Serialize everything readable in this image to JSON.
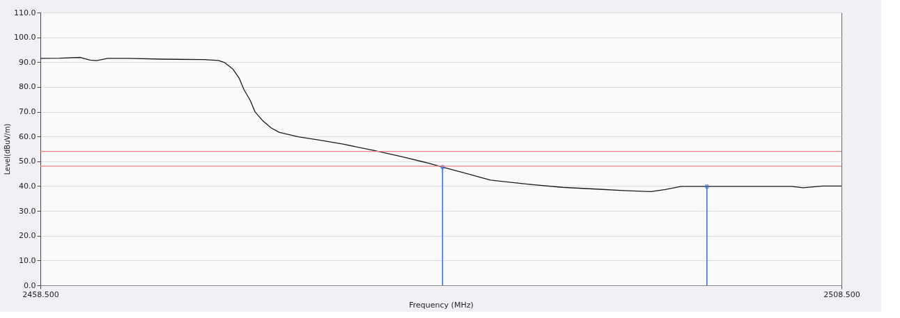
{
  "chart_data": {
    "type": "line",
    "xlabel": "Frequency (MHz)",
    "ylabel": "Level(dBuV/m)",
    "xlim": [
      2458.5,
      2508.5
    ],
    "xticks": [
      {
        "value": 2458.5,
        "label": "2458.500"
      },
      {
        "value": 2508.5,
        "label": "2508.500"
      }
    ],
    "ylim": [
      0,
      110
    ],
    "yticks": [
      {
        "value": 0,
        "label": "0.0"
      },
      {
        "value": 10,
        "label": "10.0"
      },
      {
        "value": 20,
        "label": "20.0"
      },
      {
        "value": 30,
        "label": "30.0"
      },
      {
        "value": 40,
        "label": "40.0"
      },
      {
        "value": 50,
        "label": "50.0"
      },
      {
        "value": 60,
        "label": "60.0"
      },
      {
        "value": 70,
        "label": "70.0"
      },
      {
        "value": 80,
        "label": "80.0"
      },
      {
        "value": 90,
        "label": "90.0"
      },
      {
        "value": 100,
        "label": "100.0"
      },
      {
        "value": 110,
        "label": "110.0"
      }
    ],
    "grid": "y",
    "line_style": "solid",
    "series": [
      {
        "color": "#1a1a1a",
        "marker": "none",
        "x": [
          2458.5,
          2459.7,
          2461.0,
          2461.6,
          2462.0,
          2462.7,
          2464.0,
          2466.1,
          2468.7,
          2469.6,
          2470.0,
          2470.5,
          2470.9,
          2471.2,
          2471.6,
          2471.9,
          2472.4,
          2472.9,
          2473.4,
          2474.6,
          2476.0,
          2477.4,
          2479.3,
          2481.1,
          2482.5,
          2483.6,
          2485.3,
          2486.6,
          2488.9,
          2491.1,
          2493.2,
          2494.9,
          2496.6,
          2497.5,
          2498.5,
          2500.1,
          2505.4,
          2506.1,
          2507.3,
          2508.5
        ],
        "values": [
          91.5,
          91.6,
          91.9,
          90.8,
          90.6,
          91.5,
          91.5,
          91.2,
          91.0,
          90.7,
          89.8,
          87.3,
          83.6,
          79.0,
          74.5,
          69.9,
          66.2,
          63.5,
          61.7,
          59.9,
          58.5,
          56.9,
          54.4,
          51.8,
          49.6,
          47.7,
          44.7,
          42.4,
          40.8,
          39.5,
          38.8,
          38.2,
          37.8,
          38.6,
          39.9,
          39.9,
          39.9,
          39.3,
          40.0,
          40.0
        ]
      },
      {
        "type": "lollipop",
        "color": "#3a6fe0",
        "marker": "circle",
        "x": [
          2483.6,
          2500.1
        ],
        "values": [
          47.7,
          39.8
        ]
      }
    ],
    "ref_lines": [
      {
        "axis": "y",
        "value": 54,
        "color": "#f08080"
      },
      {
        "axis": "y",
        "value": 48,
        "color": "#f08080"
      }
    ]
  }
}
